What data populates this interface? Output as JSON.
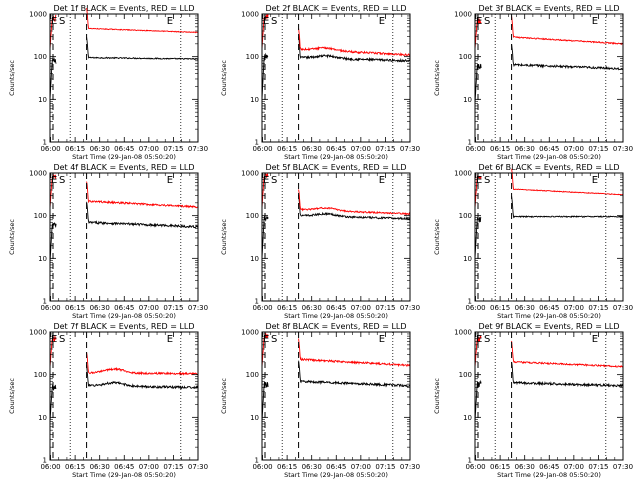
{
  "page": {
    "background": "#ffffff"
  },
  "common": {
    "xlabel": "Start Time (29-Jan-08 05:50:20)",
    "ylabel": "Counts/sec",
    "x_ticks": [
      "06:00",
      "06:15",
      "06:30",
      "06:45",
      "07:00",
      "07:15",
      "07:30"
    ],
    "y_ticks": [
      "1",
      "10",
      "100",
      "1000"
    ],
    "event_labels": [
      "E",
      "S",
      "E"
    ],
    "colors": {
      "events": "#000000",
      "lld": "#ff0000",
      "axes": "#000000"
    }
  },
  "chart_data": [
    {
      "type": "line",
      "title": "Det 1f BLACK = Events, RED = LLD",
      "xlim_min": [
        9.67,
        100
      ],
      "ylim": [
        1,
        1000
      ],
      "yscale": "log",
      "dashed_x_min": [
        11.5,
        32
      ],
      "dotted_x_min": [
        22,
        89.5
      ],
      "gap_min": [
        13.5,
        32
      ],
      "series": [
        {
          "name": "Events",
          "color": "#000000",
          "early": 80,
          "early_low": 10,
          "level": 95,
          "level_end": 88,
          "hump": 0,
          "noise": 0.03
        },
        {
          "name": "LLD",
          "color": "#ff0000",
          "early": 800,
          "early_low": 150,
          "level": 460,
          "level_end": 370,
          "hump": 0,
          "noise": 0.02
        }
      ]
    },
    {
      "type": "line",
      "title": "Det 2f BLACK = Events, RED = LLD",
      "xlim_min": [
        9.67,
        100
      ],
      "ylim": [
        1,
        1000
      ],
      "yscale": "log",
      "dashed_x_min": [
        11.5,
        32
      ],
      "dotted_x_min": [
        22,
        89.5
      ],
      "gap_min": [
        13.5,
        32
      ],
      "series": [
        {
          "name": "Events",
          "color": "#000000",
          "early": 100,
          "early_low": 10,
          "level": 95,
          "level_end": 80,
          "hump": 0.15,
          "noise": 0.06
        },
        {
          "name": "LLD",
          "color": "#ff0000",
          "early": 900,
          "early_low": 150,
          "level": 150,
          "level_end": 110,
          "hump": 0.15,
          "noise": 0.05
        }
      ]
    },
    {
      "type": "line",
      "title": "Det 3f BLACK = Events, RED = LLD",
      "xlim_min": [
        9.67,
        100
      ],
      "ylim": [
        1,
        1000
      ],
      "yscale": "log",
      "dashed_x_min": [
        11.5,
        32
      ],
      "dotted_x_min": [
        22,
        89.5
      ],
      "gap_min": [
        13.5,
        32
      ],
      "series": [
        {
          "name": "Events",
          "color": "#000000",
          "early": 60,
          "early_low": 8,
          "level": 65,
          "level_end": 52,
          "hump": 0,
          "noise": 0.06
        },
        {
          "name": "LLD",
          "color": "#ff0000",
          "early": 700,
          "early_low": 150,
          "level": 290,
          "level_end": 200,
          "hump": 0,
          "noise": 0.03
        }
      ]
    },
    {
      "type": "line",
      "title": "Det 4f BLACK = Events, RED = LLD",
      "xlim_min": [
        9.67,
        100
      ],
      "ylim": [
        1,
        1000
      ],
      "yscale": "log",
      "dashed_x_min": [
        11.5,
        32
      ],
      "dotted_x_min": [
        22,
        89.5
      ],
      "gap_min": [
        13.5,
        32
      ],
      "series": [
        {
          "name": "Events",
          "color": "#000000",
          "early": 60,
          "early_low": 8,
          "level": 70,
          "level_end": 55,
          "hump": 0,
          "noise": 0.06
        },
        {
          "name": "LLD",
          "color": "#ff0000",
          "early": 800,
          "early_low": 150,
          "level": 220,
          "level_end": 160,
          "hump": 0,
          "noise": 0.05
        }
      ]
    },
    {
      "type": "line",
      "title": "Det 5f BLACK = Events, RED = LLD",
      "xlim_min": [
        9.67,
        100
      ],
      "ylim": [
        1,
        1000
      ],
      "yscale": "log",
      "dashed_x_min": [
        11.5,
        32
      ],
      "dotted_x_min": [
        22,
        89.5
      ],
      "gap_min": [
        13.5,
        32
      ],
      "series": [
        {
          "name": "Events",
          "color": "#000000",
          "early": 90,
          "early_low": 10,
          "level": 100,
          "level_end": 85,
          "hump": 0.15,
          "noise": 0.05
        },
        {
          "name": "LLD",
          "color": "#ff0000",
          "early": 900,
          "early_low": 150,
          "level": 140,
          "level_end": 110,
          "hump": 0.15,
          "noise": 0.04
        }
      ]
    },
    {
      "type": "line",
      "title": "Det 6f BLACK = Events, RED = LLD",
      "xlim_min": [
        9.67,
        100
      ],
      "ylim": [
        1,
        1000
      ],
      "yscale": "log",
      "dashed_x_min": [
        11.5,
        32
      ],
      "dotted_x_min": [
        22,
        89.5
      ],
      "gap_min": [
        13.5,
        32
      ],
      "series": [
        {
          "name": "Events",
          "color": "#000000",
          "early": 80,
          "early_low": 10,
          "level": 95,
          "level_end": 95,
          "hump": 0,
          "noise": 0.03
        },
        {
          "name": "LLD",
          "color": "#ff0000",
          "early": 800,
          "early_low": 150,
          "level": 420,
          "level_end": 310,
          "hump": 0,
          "noise": 0.02
        }
      ]
    },
    {
      "type": "line",
      "title": "Det 7f BLACK = Events, RED = LLD",
      "xlim_min": [
        9.67,
        100
      ],
      "ylim": [
        1,
        1000
      ],
      "yscale": "log",
      "dashed_x_min": [
        11.5,
        32
      ],
      "dotted_x_min": [
        22,
        89.5
      ],
      "gap_min": [
        13.5,
        32
      ],
      "series": [
        {
          "name": "Events",
          "color": "#000000",
          "early": 50,
          "early_low": 8,
          "level": 55,
          "level_end": 50,
          "hump": 0.2,
          "noise": 0.06
        },
        {
          "name": "LLD",
          "color": "#ff0000",
          "early": 700,
          "early_low": 150,
          "level": 110,
          "level_end": 105,
          "hump": 0.25,
          "noise": 0.05
        }
      ]
    },
    {
      "type": "line",
      "title": "Det 8f BLACK = Events, RED = LLD",
      "xlim_min": [
        9.67,
        100
      ],
      "ylim": [
        1,
        1000
      ],
      "yscale": "log",
      "dashed_x_min": [
        11.5,
        32
      ],
      "dotted_x_min": [
        22,
        89.5
      ],
      "gap_min": [
        13.5,
        32
      ],
      "series": [
        {
          "name": "Events",
          "color": "#000000",
          "early": 60,
          "early_low": 8,
          "level": 70,
          "level_end": 55,
          "hump": 0,
          "noise": 0.06
        },
        {
          "name": "LLD",
          "color": "#ff0000",
          "early": 800,
          "early_low": 150,
          "level": 230,
          "level_end": 165,
          "hump": 0,
          "noise": 0.05
        }
      ]
    },
    {
      "type": "line",
      "title": "Det 9f BLACK = Events, RED = LLD",
      "xlim_min": [
        9.67,
        100
      ],
      "ylim": [
        1,
        1000
      ],
      "yscale": "log",
      "dashed_x_min": [
        11.5,
        32
      ],
      "dotted_x_min": [
        22,
        89.5
      ],
      "gap_min": [
        13.5,
        32
      ],
      "series": [
        {
          "name": "Events",
          "color": "#000000",
          "early": 60,
          "early_low": 8,
          "level": 65,
          "level_end": 55,
          "hump": 0,
          "noise": 0.06
        },
        {
          "name": "LLD",
          "color": "#ff0000",
          "early": 700,
          "early_low": 150,
          "level": 200,
          "level_end": 155,
          "hump": 0,
          "noise": 0.04
        }
      ]
    }
  ]
}
